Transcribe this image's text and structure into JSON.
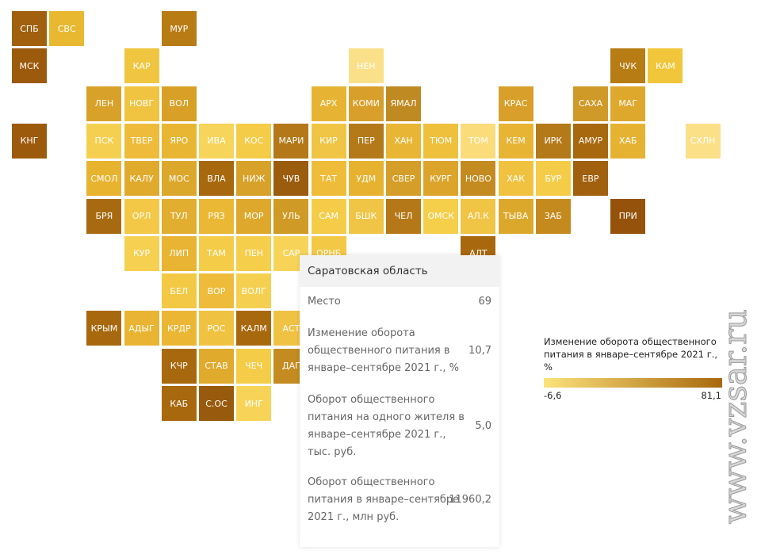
{
  "tiles": [
    {
      "label": "СПБ",
      "color": "#a0600e"
    },
    {
      "label": "СВС",
      "color": "#e8b830"
    },
    {
      "label": "МУР",
      "color": "#b87c14"
    },
    {
      "label": "МСК",
      "color": "#9c5a0c"
    },
    {
      "label": "КАР",
      "color": "#f0c640"
    },
    {
      "label": "НЕН",
      "color": "#fbe08a"
    },
    {
      "label": "ЧУК",
      "color": "#b87c14"
    },
    {
      "label": "КАМ",
      "color": "#f2c63a"
    },
    {
      "label": "ЛЕН",
      "color": "#d8a22a"
    },
    {
      "label": "НОВГ",
      "color": "#f0c440"
    },
    {
      "label": "ВОЛ",
      "color": "#d8a026"
    },
    {
      "label": "АРХ",
      "color": "#e6b432"
    },
    {
      "label": "КОМИ",
      "color": "#d8a02a"
    },
    {
      "label": "ЯМАЛ",
      "color": "#c08a22"
    },
    {
      "label": "КРАС",
      "color": "#d8a02a"
    },
    {
      "label": "САХА",
      "color": "#d09a28"
    },
    {
      "label": "МАГ",
      "color": "#dea82c"
    },
    {
      "label": "КНГ",
      "color": "#9c5a0c"
    },
    {
      "label": "ПСК",
      "color": "#f5d050"
    },
    {
      "label": "ТВЕР",
      "color": "#eebc3a"
    },
    {
      "label": "ЯРО",
      "color": "#e8b632"
    },
    {
      "label": "ИВА",
      "color": "#f7d45a"
    },
    {
      "label": "КОС",
      "color": "#f4cc48"
    },
    {
      "label": "МАРИ",
      "color": "#b47818"
    },
    {
      "label": "КИР",
      "color": "#f0c444"
    },
    {
      "label": "ПЕР",
      "color": "#b47a1a"
    },
    {
      "label": "ХАН",
      "color": "#e8b634"
    },
    {
      "label": "ТЮМ",
      "color": "#eec03c"
    },
    {
      "label": "ТОМ",
      "color": "#fbdc7a"
    },
    {
      "label": "КЕМ",
      "color": "#e8b434"
    },
    {
      "label": "ИРК",
      "color": "#b47a1a"
    },
    {
      "label": "АМУР",
      "color": "#a8680e"
    },
    {
      "label": "ХАБ",
      "color": "#e6b232"
    },
    {
      "label": "СХЛН",
      "color": "#fbe088"
    },
    {
      "label": "СМОЛ",
      "color": "#e8b430"
    },
    {
      "label": "КАЛУ",
      "color": "#e0aa2c"
    },
    {
      "label": "МОС",
      "color": "#dca82c"
    },
    {
      "label": "ВЛА",
      "color": "#a8680e"
    },
    {
      "label": "НИЖ",
      "color": "#d8a22a"
    },
    {
      "label": "ЧУВ",
      "color": "#9c5c0e"
    },
    {
      "label": "ТАТ",
      "color": "#eebc38"
    },
    {
      "label": "УДМ",
      "color": "#e6b230"
    },
    {
      "label": "СВЕР",
      "color": "#d49e28"
    },
    {
      "label": "КУРГ",
      "color": "#dca42a"
    },
    {
      "label": "НОВО",
      "color": "#c48c20"
    },
    {
      "label": "ХАК",
      "color": "#f0c240"
    },
    {
      "label": "БУР",
      "color": "#f5cc48"
    },
    {
      "label": "ЕВР",
      "color": "#a0600e"
    },
    {
      "label": "БРЯ",
      "color": "#a86a10"
    },
    {
      "label": "ОРЛ",
      "color": "#f2c846"
    },
    {
      "label": "ТУЛ",
      "color": "#e2ae30"
    },
    {
      "label": "РЯЗ",
      "color": "#eab834"
    },
    {
      "label": "МОР",
      "color": "#dea82c"
    },
    {
      "label": "УЛЬ",
      "color": "#d09a26"
    },
    {
      "label": "САМ",
      "color": "#f4cc48"
    },
    {
      "label": "БШК",
      "color": "#f0c444"
    },
    {
      "label": "ЧЕЛ",
      "color": "#b47818"
    },
    {
      "label": "ОМСК",
      "color": "#f5ce4a"
    },
    {
      "label": "АЛ.К",
      "color": "#f0c444"
    },
    {
      "label": "ТЫВА",
      "color": "#dca82c"
    },
    {
      "label": "ЗАБ",
      "color": "#c48a1e"
    },
    {
      "label": "ПРИ",
      "color": "#94520a"
    },
    {
      "label": "КУР",
      "color": "#f6d050"
    },
    {
      "label": "ЛИП",
      "color": "#e8b432"
    },
    {
      "label": "ТАМ",
      "color": "#f5cc48"
    },
    {
      "label": "ПЕН",
      "color": "#f5ce4c"
    },
    {
      "label": "САР",
      "color": "#f7d458"
    },
    {
      "label": "ОРНБ",
      "color": "#f3c844"
    },
    {
      "label": "АЛТ",
      "color": "#a8680e"
    },
    {
      "label": "БЕЛ",
      "color": "#f3c844"
    },
    {
      "label": "ВОР",
      "color": "#eebc3a"
    },
    {
      "label": "ВОЛГ",
      "color": "#f5d050"
    },
    {
      "label": "КРЫМ",
      "color": "#a8680e"
    },
    {
      "label": "АДЫГ",
      "color": "#e8b432"
    },
    {
      "label": "КРДР",
      "color": "#eab634"
    },
    {
      "label": "РОС",
      "color": "#f0c242"
    },
    {
      "label": "КАЛМ",
      "color": "#a8680e"
    },
    {
      "label": "АСТ",
      "color": "#f0c244"
    },
    {
      "label": "КЧР",
      "color": "#a8680e"
    },
    {
      "label": "СТАВ",
      "color": "#e0aa2c"
    },
    {
      "label": "ЧЕЧ",
      "color": "#f4cc48"
    },
    {
      "label": "ДАГ",
      "color": "#c48c20"
    },
    {
      "label": "КАБ",
      "color": "#a8680e"
    },
    {
      "label": "С.ОС",
      "color": "#985a0c"
    },
    {
      "label": "ИНГ",
      "color": "#f7d458"
    }
  ],
  "tooltip": {
    "title": "Саратовская область",
    "rows": [
      {
        "label": "Место",
        "value": "69"
      },
      {
        "label": "Изменение оборота общественного питания в январе–сентябре 2021 г., %",
        "value": "10,7"
      },
      {
        "label": "Оборот общественного питания на одного жителя в январе–сентябре 2021 г., тыс. руб.",
        "value": "5,0"
      },
      {
        "label": "Оборот общественного питания в январе–сентябре 2021 г., млн руб.",
        "value": "11960,2"
      }
    ]
  },
  "legend": {
    "title": "Изменение оборота общественного питания в январе–сентябре 2021 г., %",
    "min": "-6,6",
    "max": "81,1",
    "color_low": "#fbe27a",
    "color_high": "#a8680e"
  },
  "watermark": "www.vzsar.ru"
}
